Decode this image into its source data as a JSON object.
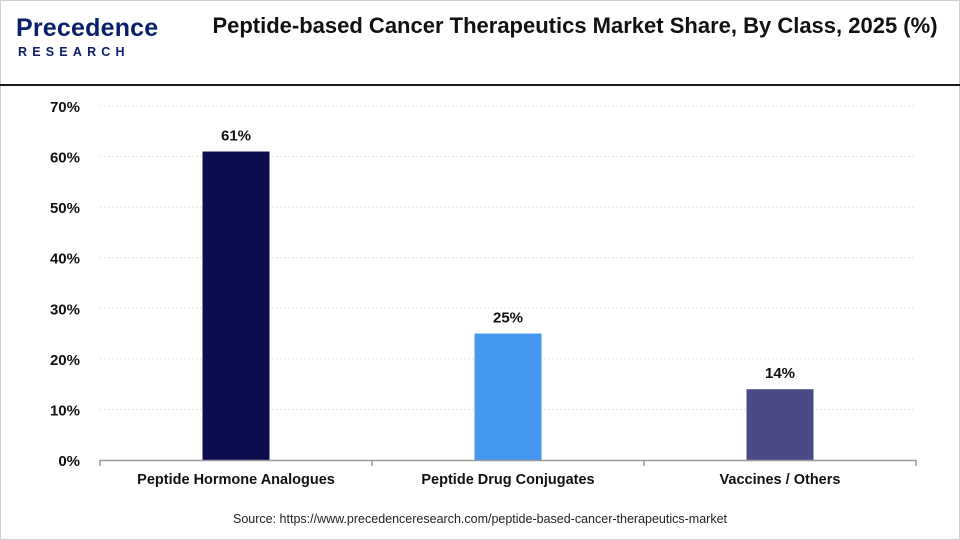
{
  "header": {
    "logo_word": "Precedence",
    "logo_sub": "RESEARCH",
    "title": "Peptide-based Cancer Therapeutics Market Share, By Class, 2025 (%)"
  },
  "footer": {
    "source": "Source: https://www.precedenceresearch.com/peptide-based-cancer-therapeutics-market"
  },
  "colors": {
    "brand": "#0a1f6b",
    "bar_colors": [
      "#0b0d4e",
      "#4597ef",
      "#4a4a86"
    ],
    "grid": "#e3e3e3",
    "axis": "#9a9a9a"
  },
  "chart_data": {
    "type": "bar",
    "title": "Peptide-based Cancer Therapeutics Market Share, By Class, 2025 (%)",
    "categories": [
      "Peptide Hormone Analogues",
      "Peptide Drug Conjugates",
      "Vaccines / Others"
    ],
    "values": [
      61,
      25,
      14
    ],
    "data_labels": [
      "61%",
      "25%",
      "14%"
    ],
    "yticks": [
      "0%",
      "10%",
      "20%",
      "30%",
      "40%",
      "50%",
      "60%",
      "70%"
    ],
    "ylim": [
      0,
      70
    ],
    "xlabel": "",
    "ylabel": "",
    "grid": true,
    "legend": "none"
  }
}
